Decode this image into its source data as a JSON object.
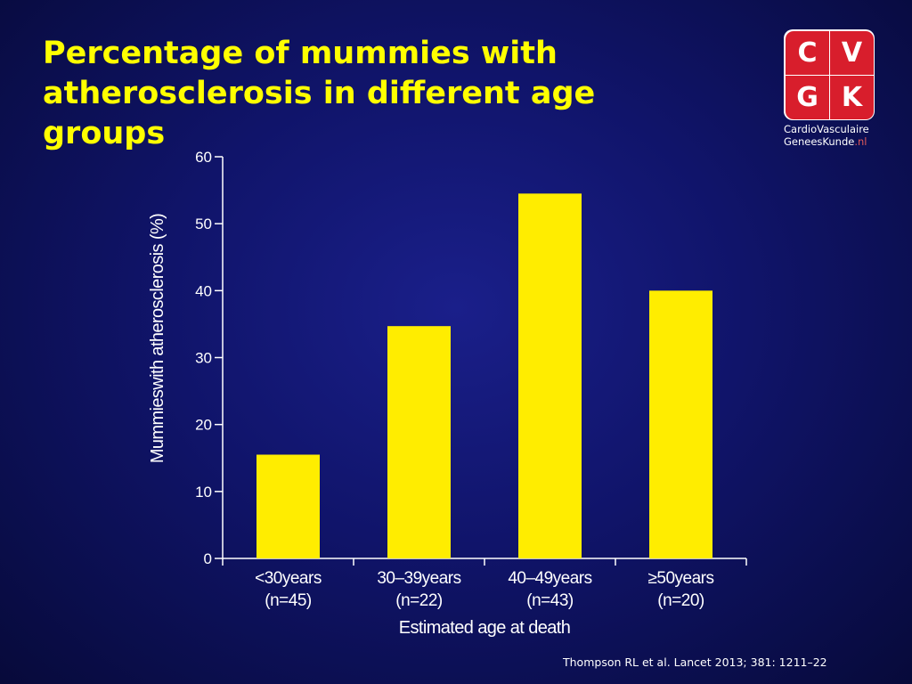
{
  "slide": {
    "title_lines": [
      "Percentage of mummies with",
      "atherosclerosis in different age",
      "groups"
    ],
    "citation": "Thompson RL et al. Lancet 2013; 381: 1211–22"
  },
  "logo": {
    "letters": [
      "C",
      "V",
      "G",
      "K"
    ],
    "line1": "CardioVasculaire",
    "line2_main": "GeneesKunde",
    "line2_suffix": ".nl",
    "colors": {
      "tile": "#d81e2c",
      "frame": "#ffffff",
      "suffix": "#e05a5a"
    }
  },
  "colors": {
    "bar": "#ffed00",
    "text": "#ffffff",
    "title": "#ffff00"
  },
  "chart_data": {
    "type": "bar",
    "categories": [
      {
        "label": "<30years",
        "n": "(n=45)"
      },
      {
        "label": "30–39years",
        "n": "(n=22)"
      },
      {
        "label": "40–49years",
        "n": "(n=43)"
      },
      {
        "label": "≥50years",
        "n": "(n=20)"
      }
    ],
    "values": [
      15.5,
      34.7,
      54.5,
      40.0
    ],
    "xlabel": "Estimated age at death",
    "ylabel": "Mummieswith atherosclerosis (%)",
    "ylim": [
      0,
      60
    ],
    "yticks": [
      0,
      10,
      20,
      30,
      40,
      50,
      60
    ],
    "grid": false,
    "legend": "none"
  }
}
